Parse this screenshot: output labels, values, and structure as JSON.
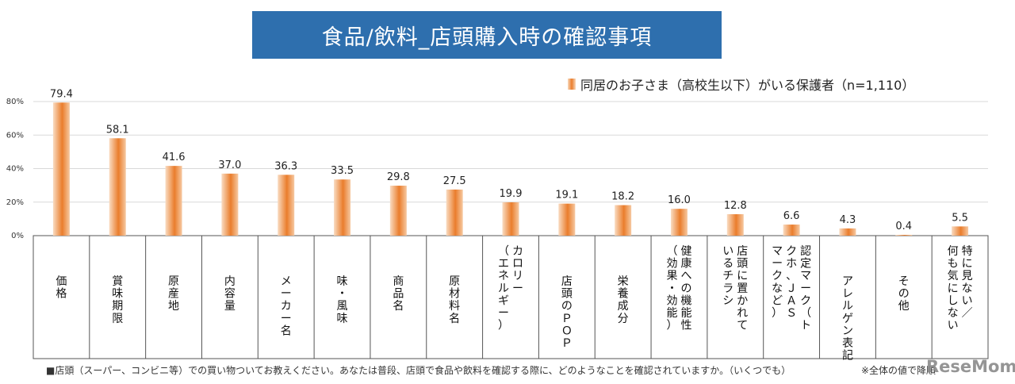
{
  "chart_data": {
    "type": "bar",
    "title": "食品/飲料_店頭購入時の確認事項",
    "legend": "同居のお子さま（高校生以下）がいる保護者（n=1,110）",
    "legend_position": "top-right",
    "ylim": [
      0,
      80
    ],
    "yticks": [
      "80%",
      "60%",
      "40%",
      "20%",
      "0%"
    ],
    "grid": true,
    "series_color": "#ea7d2c",
    "categories": [
      [
        "価格"
      ],
      [
        "賞味期限"
      ],
      [
        "原産地"
      ],
      [
        "内容量"
      ],
      [
        "メーカー名"
      ],
      [
        "味・風味"
      ],
      [
        "商品名"
      ],
      [
        "原材料名"
      ],
      [
        "カロリー",
        "（エネルギー）"
      ],
      [
        "店頭のＰＯＰ"
      ],
      [
        "栄養成分"
      ],
      [
        "健康への機能性",
        "（効果・効能）"
      ],
      [
        "店頭に置かれて",
        "いるチラシ"
      ],
      [
        "認定マーク（ト",
        "クホ、ＪＡＳ",
        "マークなど）"
      ],
      [
        "アレルゲン表記"
      ],
      [
        "その他"
      ],
      [
        "特に見ない／",
        "何も気にしない"
      ]
    ],
    "values": [
      79.4,
      58.1,
      41.6,
      37.0,
      36.3,
      33.5,
      29.8,
      27.5,
      19.9,
      19.1,
      18.2,
      16.0,
      12.8,
      6.6,
      4.3,
      0.4,
      5.5
    ],
    "value_labels": [
      "79.4",
      "58.1",
      "41.6",
      "37.0",
      "36.3",
      "33.5",
      "29.8",
      "27.5",
      "19.9",
      "19.1",
      "18.2",
      "16.0",
      "12.8",
      "6.6",
      "4.3",
      "0.4",
      "5.5"
    ]
  },
  "footnote": "■店頭（スーパー、コンビニ等）での買い物ついてお教えください。あなたは普段、店頭で食品や飲料を確認する際に、どのようなことを確認されていますか。（いくつでも）",
  "note_right": "※全体の値で降順",
  "logo": "ReseMom"
}
